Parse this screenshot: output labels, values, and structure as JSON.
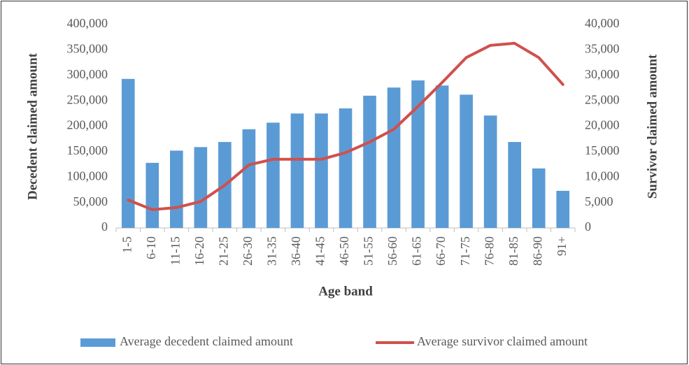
{
  "chart_data": {
    "type": "combo",
    "x_label": "Age band",
    "y_label": "Decedent claimed amount",
    "y2_label": "Survivor claimed amount",
    "categories": [
      "1-5",
      "6-10",
      "11-15",
      "16-20",
      "21-25",
      "26-30",
      "31-35",
      "36-40",
      "41-45",
      "46-50",
      "51-55",
      "56-60",
      "61-65",
      "66-70",
      "71-75",
      "76-80",
      "81-85",
      "86-90",
      "91+"
    ],
    "series": [
      {
        "name": "Average decedent claimed amount",
        "type": "bar",
        "color": "#5b9bd5",
        "values": [
          293000,
          128000,
          152000,
          159000,
          169000,
          194000,
          207000,
          225000,
          225000,
          235000,
          260000,
          276000,
          290000,
          280000,
          262000,
          221000,
          169000,
          117000,
          73000
        ]
      },
      {
        "name": "Average survivor claimed amount",
        "type": "line",
        "axis": "y2",
        "color": "#d0504d",
        "values": [
          5500,
          3600,
          4000,
          5200,
          8400,
          12400,
          13500,
          13500,
          13500,
          14800,
          16900,
          19400,
          23900,
          28600,
          33500,
          35900,
          36300,
          33500,
          28200
        ]
      }
    ],
    "ylim": [
      0,
      400000
    ],
    "yticks": [
      0,
      {
        "value": 50000,
        "label": "50,000"
      },
      {
        "value": 100000,
        "label": "100,000"
      },
      {
        "value": 150000,
        "label": "150,000"
      },
      {
        "value": 200000,
        "label": "200,000"
      },
      {
        "value": 250000,
        "label": "250,000"
      },
      {
        "value": 300000,
        "label": "300,000"
      },
      {
        "value": 350000,
        "label": "350,000"
      },
      {
        "value": 400000,
        "label": "400,000"
      }
    ],
    "y2lim": [
      0,
      40000
    ],
    "y2ticks": [
      0,
      {
        "value": 5000,
        "label": "5,000"
      },
      {
        "value": 10000,
        "label": "10,000"
      },
      {
        "value": 15000,
        "label": "15,000"
      },
      {
        "value": 20000,
        "label": "20,000"
      },
      {
        "value": 25000,
        "label": "25,000"
      },
      {
        "value": 30000,
        "label": "30,000"
      },
      {
        "value": 35000,
        "label": "35,000"
      },
      {
        "value": 40000,
        "label": "40,000"
      }
    ],
    "grid": false,
    "legend": "bottom"
  }
}
